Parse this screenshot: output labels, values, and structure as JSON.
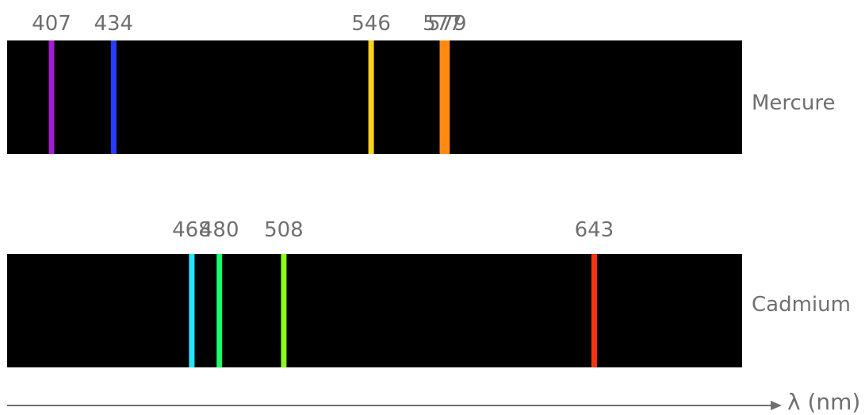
{
  "spectra": [
    {
      "element": "Mercure",
      "lines": [
        {
          "wavelength": 407,
          "label": "407",
          "color": "#a01fd0"
        },
        {
          "wavelength": 434,
          "label": "434",
          "color": "#2a3cff"
        },
        {
          "wavelength": 546,
          "label": "546",
          "color": "#ffd21a"
        },
        {
          "wavelength": 577,
          "label": "577",
          "color": "#ff8a12"
        },
        {
          "wavelength": 579,
          "label": "579",
          "color": "#ff8a12"
        }
      ]
    },
    {
      "element": "Cadmium",
      "lines": [
        {
          "wavelength": 468,
          "label": "468",
          "color": "#22e6ff"
        },
        {
          "wavelength": 480,
          "label": "480",
          "color": "#1aff6a"
        },
        {
          "wavelength": 508,
          "label": "508",
          "color": "#8cff1a"
        },
        {
          "wavelength": 643,
          "label": "643",
          "color": "#ff3311"
        }
      ]
    }
  ],
  "axis": {
    "label": "λ (nm)"
  }
}
